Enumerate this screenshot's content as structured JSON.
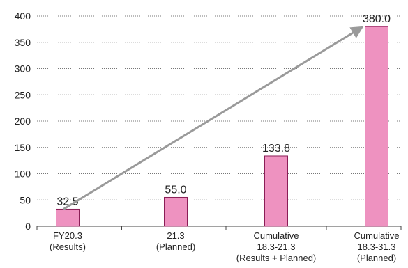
{
  "chart_data": {
    "type": "bar",
    "categories": [
      [
        "FY20.3",
        "(Results)"
      ],
      [
        "21.3",
        "(Planned)"
      ],
      [
        "Cumulative",
        "18.3-21.3",
        "(Results + Planned)"
      ],
      [
        "Cumulative",
        "18.3-31.3",
        "(Planned)"
      ]
    ],
    "values": [
      32.5,
      55.0,
      133.8,
      380.0
    ],
    "value_labels": [
      "32.5",
      "55.0",
      "133.8",
      "380.0"
    ],
    "ylim": [
      0,
      400
    ],
    "yticks": [
      0,
      50,
      100,
      150,
      200,
      250,
      300,
      350,
      400
    ],
    "grid": "horizontal-dotted",
    "arrow": {
      "from_category": 0,
      "to_category": 3
    },
    "colors": {
      "bar_fill": "#ee92c0",
      "bar_stroke": "#8a1d56",
      "arrow": "#9a9a9a",
      "grid": "#777777",
      "axis": "#444444",
      "text": "#222222"
    }
  }
}
